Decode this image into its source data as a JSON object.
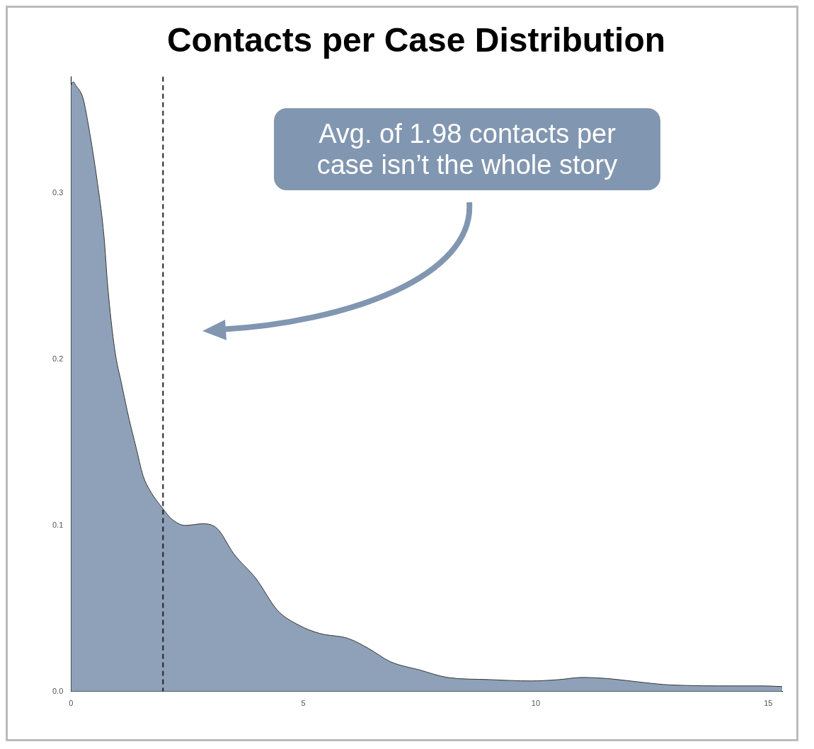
{
  "chart_data": {
    "type": "area",
    "title": "Contacts per Case Distribution",
    "x": [
      0,
      0.05,
      0.1,
      0.26,
      0.38,
      0.56,
      0.71,
      0.79,
      0.94,
      1.09,
      1.25,
      1.4,
      1.55,
      1.7,
      1.98,
      2.16,
      2.46,
      2.84,
      3.15,
      3.5,
      3.98,
      4.44,
      4.9,
      5.35,
      5.96,
      6.4,
      6.87,
      7.5,
      8.1,
      9.0,
      9.9,
      10.5,
      11.0,
      11.6,
      12.3,
      12.9,
      14.3,
      14.9,
      15.3
    ],
    "series": [
      {
        "color": "#8fa1b8",
        "values": [
          0.365,
          0.367,
          0.365,
          0.357,
          0.34,
          0.308,
          0.274,
          0.244,
          0.206,
          0.185,
          0.164,
          0.147,
          0.13,
          0.121,
          0.11,
          0.104,
          0.1,
          0.101,
          0.098,
          0.083,
          0.068,
          0.049,
          0.04,
          0.035,
          0.032,
          0.026,
          0.018,
          0.013,
          0.0085,
          0.0072,
          0.0064,
          0.0072,
          0.0085,
          0.0077,
          0.0055,
          0.004,
          0.0034,
          0.0034,
          0.003
        ]
      }
    ],
    "xlim": [
      0,
      15.3
    ],
    "xticks": [
      0,
      5,
      10,
      15
    ],
    "ylim": [
      0,
      0.37
    ],
    "yticks": [
      {
        "value": 0,
        "label": "0.0"
      },
      {
        "value": 0.1,
        "label": "0.1"
      },
      {
        "value": 0.2,
        "label": "0.2"
      },
      {
        "value": 0.3,
        "label": "0.3"
      }
    ],
    "grid": false,
    "legend": false,
    "ref_lines": [
      {
        "axis": "x",
        "value": 1.98,
        "line_style": "dashed",
        "color": "#222222"
      }
    ],
    "annotations": [
      "Avg. of 1.98 contacts per case isn’t the whole story"
    ]
  }
}
